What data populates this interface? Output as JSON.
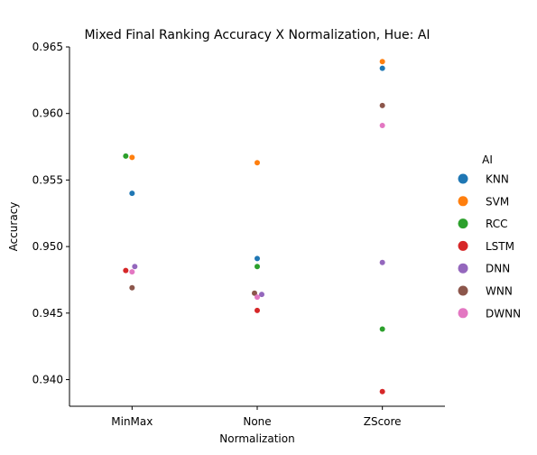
{
  "chart_data": {
    "type": "scatter",
    "title": "Mixed Final Ranking Accuracy X Normalization, Hue: AI",
    "xlabel": "Normalization",
    "ylabel": "Accuracy",
    "categories": [
      "MinMax",
      "None",
      "ZScore"
    ],
    "ylim": [
      0.938,
      0.965
    ],
    "yticks": [
      0.94,
      0.945,
      0.95,
      0.955,
      0.96,
      0.965
    ],
    "ytick_labels": [
      "0.940",
      "0.945",
      "0.950",
      "0.955",
      "0.960",
      "0.965"
    ],
    "grid": false,
    "legend": {
      "title": "AI",
      "placement": "right"
    },
    "series": [
      {
        "name": "KNN",
        "color": "#1f77b4",
        "values": [
          0.954,
          0.9491,
          0.9634
        ]
      },
      {
        "name": "SVM",
        "color": "#ff7f0e",
        "values": [
          0.9567,
          0.9563,
          0.9639
        ]
      },
      {
        "name": "RCC",
        "color": "#2ca02c",
        "values": [
          0.9568,
          0.9485,
          0.9438
        ]
      },
      {
        "name": "LSTM",
        "color": "#d62728",
        "values": [
          0.9482,
          0.9452,
          0.9391
        ]
      },
      {
        "name": "DNN",
        "color": "#9467bd",
        "values": [
          0.9485,
          0.9464,
          0.9488
        ]
      },
      {
        "name": "WNN",
        "color": "#8c564b",
        "values": [
          0.9469,
          0.9465,
          0.9606
        ]
      },
      {
        "name": "DWNN",
        "color": "#e377c2",
        "values": [
          0.9481,
          0.9462,
          0.9591
        ]
      }
    ]
  }
}
